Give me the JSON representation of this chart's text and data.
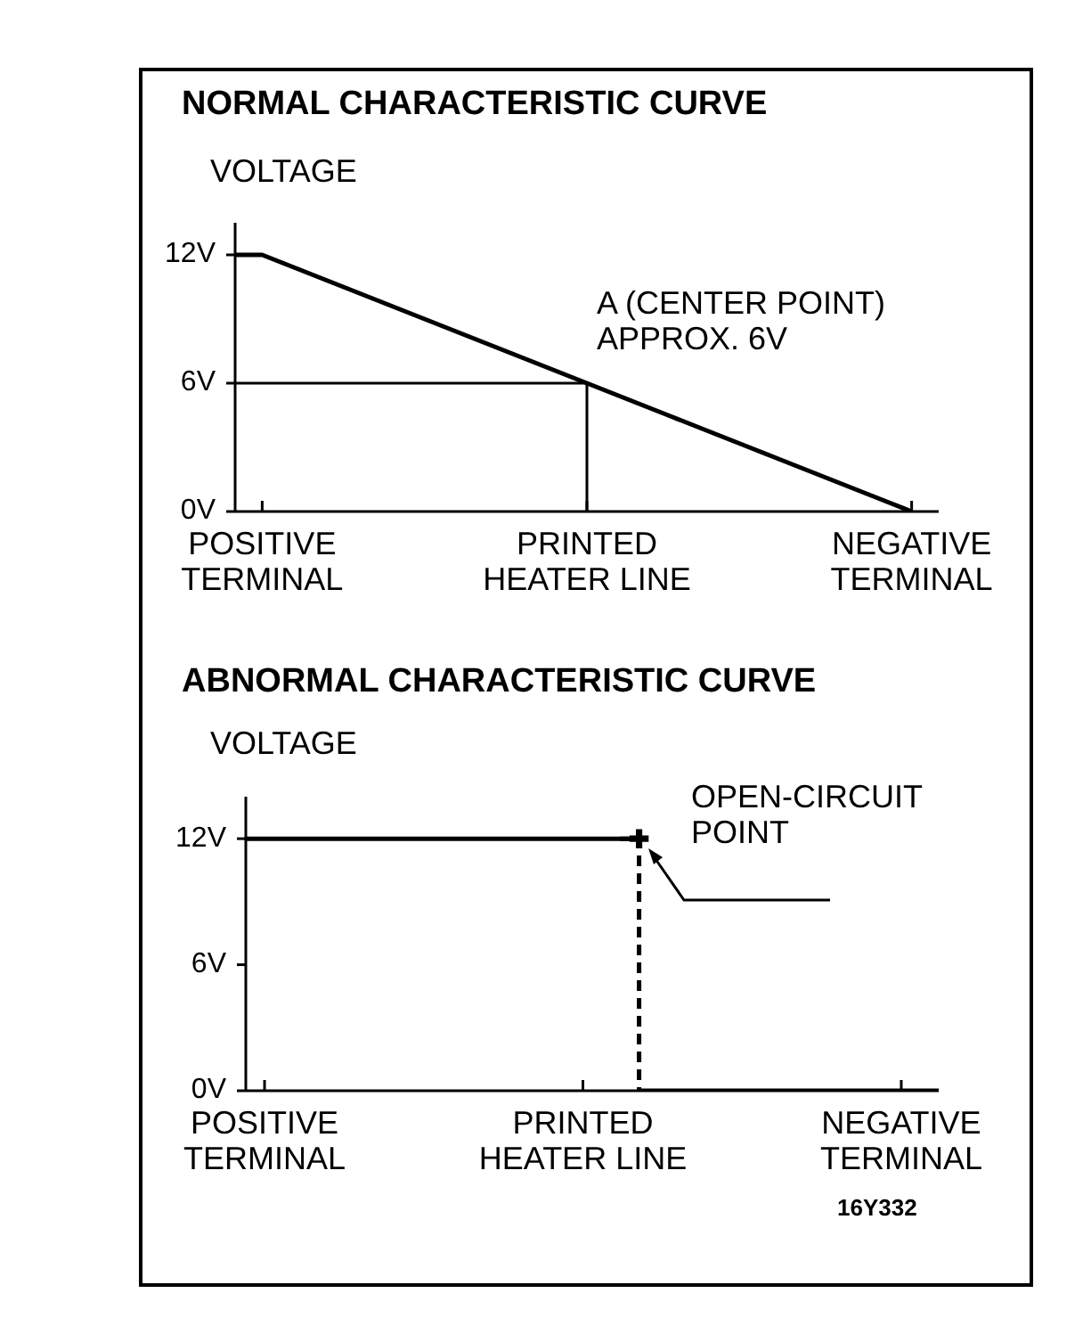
{
  "chart_data": [
    {
      "type": "line",
      "title": "NORMAL CHARACTERISTIC CURVE",
      "ylabel": "VOLTAGE",
      "categories": [
        null,
        "POSITIVE\nTERMINAL",
        null,
        null,
        null,
        null,
        null,
        null,
        null,
        null,
        null,
        null,
        null,
        "PRINTED\nHEATER LINE",
        null,
        null,
        null,
        null,
        null,
        null,
        null,
        null,
        null,
        null,
        null,
        "NEGATIVE\nTERMINAL",
        null
      ],
      "ylim": [
        0,
        13.5
      ],
      "yticks": [
        {
          "value": 0,
          "label": "0V"
        },
        {
          "value": 6,
          "label": "6V"
        },
        {
          "value": 12,
          "label": "12V"
        }
      ],
      "marker": "none",
      "line_style": "solid",
      "series": [
        {
          "color": "#000000",
          "values": [
            12,
            12,
            11.5,
            11,
            10.5,
            10,
            9.5,
            9,
            8.5,
            8,
            7.5,
            7,
            6.5,
            6,
            5.5,
            5,
            4.5,
            4,
            3.5,
            3,
            2.5,
            2,
            1.5,
            1,
            0.5,
            0,
            null
          ]
        },
        {
          "type": "step",
          "color": "#000000",
          "values": [
            6,
            6,
            6,
            6,
            6,
            6,
            6,
            6,
            6,
            6,
            6,
            6,
            6,
            0,
            null,
            null,
            null,
            null,
            null,
            null,
            null,
            null,
            null,
            null,
            null,
            null,
            null
          ]
        }
      ],
      "annotations": [
        "A (CENTER POINT)\nAPPROX. 6V"
      ]
    },
    {
      "type": "line",
      "title": "ABNORMAL CHARACTERISTIC CURVE",
      "ylabel": "VOLTAGE",
      "categories": [
        null,
        "POSITIVE\nTERMINAL",
        null,
        null,
        null,
        null,
        null,
        null,
        null,
        null,
        null,
        null,
        null,
        null,
        null,
        null,
        null,
        null,
        "PRINTED\nHEATER LINE",
        null,
        null,
        null,
        null,
        null,
        null,
        null,
        null,
        null,
        null,
        null,
        null,
        null,
        null,
        null,
        null,
        "NEGATIVE\nTERMINAL",
        null,
        null
      ],
      "ylim": [
        0,
        14
      ],
      "yticks": [
        {
          "value": 0,
          "label": "0V"
        },
        {
          "value": 6,
          "label": "6V"
        },
        {
          "value": 12,
          "label": "12V"
        }
      ],
      "marker": "none",
      "line_style": "solid",
      "series": [
        {
          "color": "#000000",
          "values": [
            12,
            12,
            12,
            12,
            12,
            12,
            12,
            12,
            12,
            12,
            12,
            12,
            12,
            12,
            12,
            12,
            12,
            12,
            12,
            12,
            12,
            12,
            null,
            null,
            null,
            null,
            null,
            null,
            null,
            null,
            null,
            null,
            null,
            null,
            null,
            null,
            null,
            null
          ]
        },
        {
          "type": "step",
          "color": "#000000",
          "line_style": "dashed",
          "values": [
            null,
            null,
            null,
            null,
            null,
            null,
            null,
            null,
            null,
            null,
            null,
            null,
            null,
            null,
            null,
            null,
            null,
            null,
            null,
            null,
            12,
            0,
            null,
            null,
            null,
            null,
            null,
            null,
            null,
            null,
            null,
            null,
            null,
            null,
            null,
            null,
            null,
            null
          ]
        },
        {
          "color": "#000000",
          "values": [
            null,
            null,
            null,
            null,
            null,
            null,
            null,
            null,
            null,
            null,
            null,
            null,
            null,
            null,
            null,
            null,
            null,
            null,
            null,
            null,
            null,
            0,
            0,
            0,
            0,
            0,
            0,
            0,
            0,
            0,
            0,
            0,
            0,
            0,
            0,
            0,
            0,
            0
          ]
        },
        {
          "type": "scatter",
          "color": "#000000",
          "marker": "cross",
          "values": [
            null,
            null,
            null,
            null,
            null,
            null,
            null,
            null,
            null,
            null,
            null,
            null,
            null,
            null,
            null,
            null,
            null,
            null,
            null,
            null,
            null,
            12,
            null,
            null,
            null,
            null,
            null,
            null,
            null,
            null,
            null,
            null,
            null,
            null,
            null,
            null,
            null,
            null
          ]
        }
      ],
      "annotations": [
        "OPEN-CIRCUIT\nPOINT",
        "16Y332"
      ]
    }
  ]
}
